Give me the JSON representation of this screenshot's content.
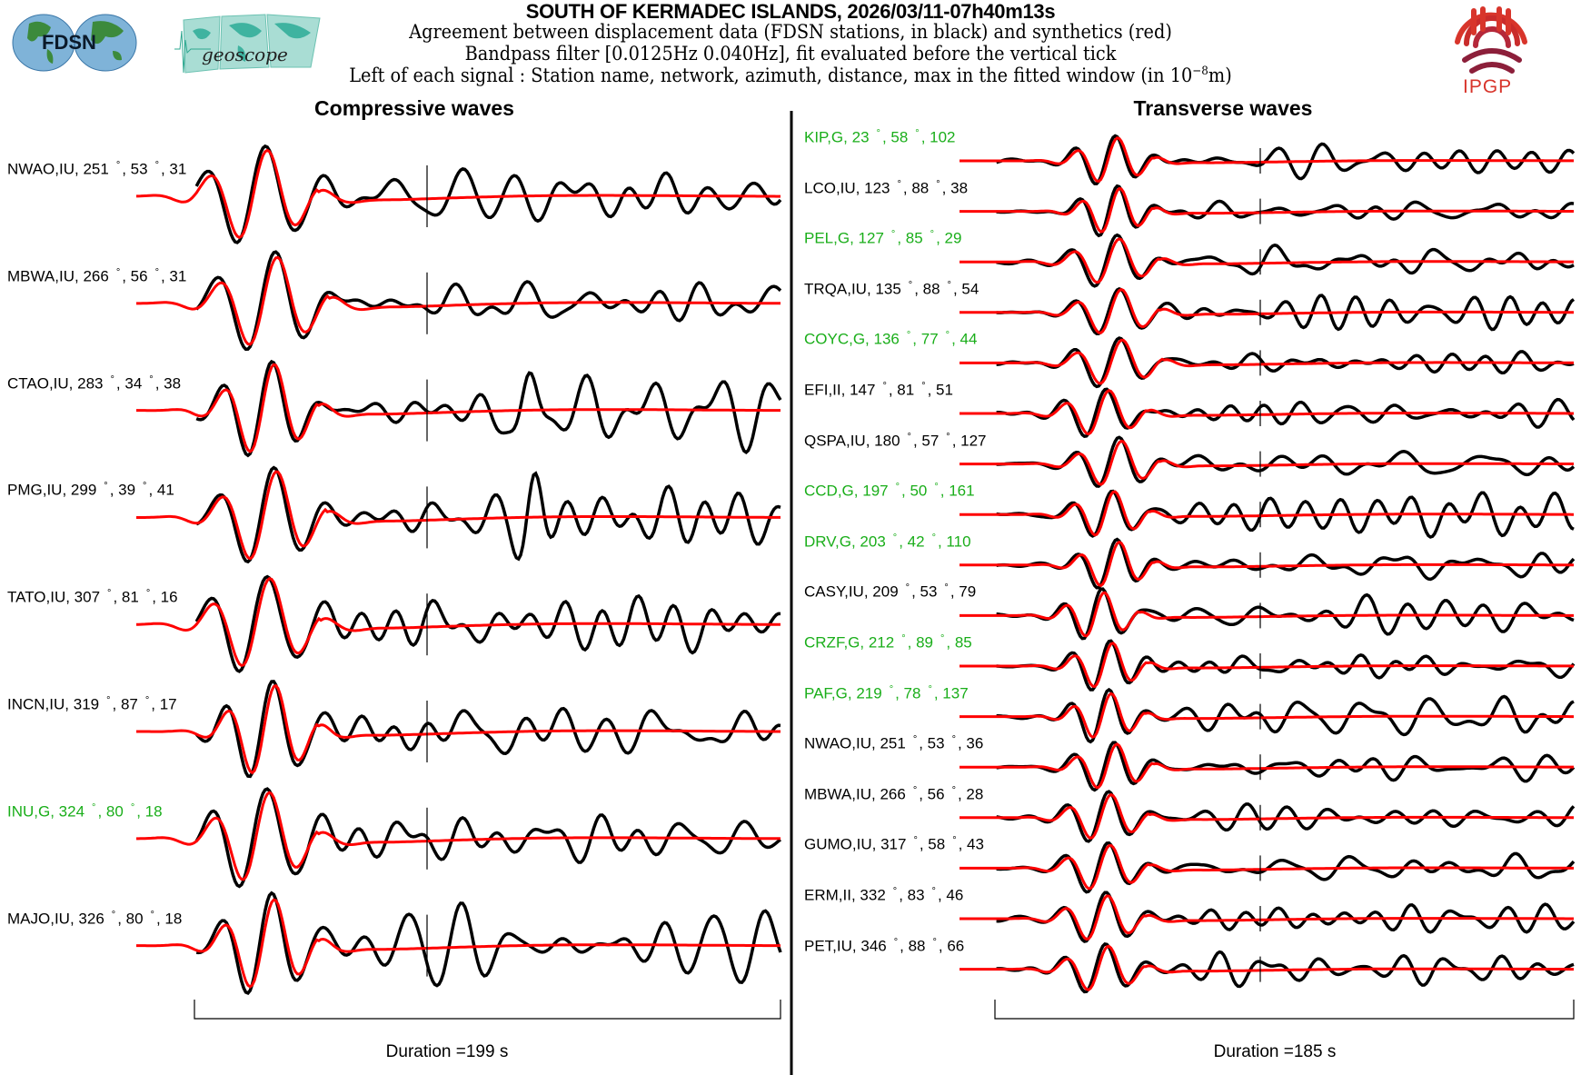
{
  "header": {
    "title": "SOUTH OF KERMADEC ISLANDS, 2026/03/11-07h40m13s",
    "line1": "Agreement between displacement data (FDSN stations, in black) and synthetics (red)",
    "line2": "Bandpass filter [0.0125Hz 0.040Hz], fit evaluated before the vertical tick",
    "line3_prefix": "Left of each signal : Station name, network, azimuth, distance, max in the fitted window (in 10",
    "line3_exp": "−8",
    "line3_suffix": "m)"
  },
  "logos": {
    "fdsn": "FDSN",
    "geoscope": "geoscope",
    "ipgp": "IPGP"
  },
  "colors": {
    "data": "#000000",
    "synthetic": "#ff0000",
    "geoscope_station": "#1aae1a",
    "other_station": "#000000"
  },
  "chart_data": {
    "type": "line",
    "title": "SOUTH OF KERMADEC ISLANDS, 2026/03/11-07h40m13s",
    "series_legend": [
      "data (black)",
      "synthetics (red)"
    ],
    "panels": [
      {
        "title": "Compressive waves",
        "duration_label": "Duration =199 s",
        "duration_s": 199,
        "stations": [
          {
            "name": "NWAO",
            "net": "IU",
            "az": "251",
            "dist": "53",
            "max": "31",
            "geoscope": false
          },
          {
            "name": "MBWA",
            "net": "IU",
            "az": "266",
            "dist": "56",
            "max": "31",
            "geoscope": false
          },
          {
            "name": "CTAO",
            "net": "IU",
            "az": "283",
            "dist": "34",
            "max": "38",
            "geoscope": false
          },
          {
            "name": "PMG",
            "net": "IU",
            "az": "299",
            "dist": "39",
            "max": "41",
            "geoscope": false
          },
          {
            "name": "TATO",
            "net": "IU",
            "az": "307",
            "dist": "81",
            "max": "16",
            "geoscope": false
          },
          {
            "name": "INCN",
            "net": "IU",
            "az": "319",
            "dist": "87",
            "max": "17",
            "geoscope": false
          },
          {
            "name": "INU",
            "net": "G",
            "az": "324",
            "dist": "80",
            "max": "18",
            "geoscope": true
          },
          {
            "name": "MAJO",
            "net": "IU",
            "az": "326",
            "dist": "80",
            "max": "18",
            "geoscope": false
          }
        ]
      },
      {
        "title": "Transverse waves",
        "duration_label": "Duration =185 s",
        "duration_s": 185,
        "stations": [
          {
            "name": "KIP",
            "net": "G",
            "az": "23",
            "dist": "58",
            "max": "102",
            "geoscope": true
          },
          {
            "name": "LCO",
            "net": "IU",
            "az": "123",
            "dist": "88",
            "max": "38",
            "geoscope": false
          },
          {
            "name": "PEL",
            "net": "G",
            "az": "127",
            "dist": "85",
            "max": "29",
            "geoscope": true
          },
          {
            "name": "TRQA",
            "net": "IU",
            "az": "135",
            "dist": "88",
            "max": "54",
            "geoscope": false
          },
          {
            "name": "COYC",
            "net": "G",
            "az": "136",
            "dist": "77",
            "max": "44",
            "geoscope": true
          },
          {
            "name": "EFI",
            "net": "II",
            "az": "147",
            "dist": "81",
            "max": "51",
            "geoscope": false
          },
          {
            "name": "QSPA",
            "net": "IU",
            "az": "180",
            "dist": "57",
            "max": "127",
            "geoscope": false
          },
          {
            "name": "CCD",
            "net": "G",
            "az": "197",
            "dist": "50",
            "max": "161",
            "geoscope": true
          },
          {
            "name": "DRV",
            "net": "G",
            "az": "203",
            "dist": "42",
            "max": "110",
            "geoscope": true
          },
          {
            "name": "CASY",
            "net": "IU",
            "az": "209",
            "dist": "53",
            "max": "79",
            "geoscope": false
          },
          {
            "name": "CRZF",
            "net": "G",
            "az": "212",
            "dist": "89",
            "max": "85",
            "geoscope": true
          },
          {
            "name": "PAF",
            "net": "G",
            "az": "219",
            "dist": "78",
            "max": "137",
            "geoscope": true
          },
          {
            "name": "NWAO",
            "net": "IU",
            "az": "251",
            "dist": "53",
            "max": "36",
            "geoscope": false
          },
          {
            "name": "MBWA",
            "net": "IU",
            "az": "266",
            "dist": "56",
            "max": "28",
            "geoscope": false
          },
          {
            "name": "GUMO",
            "net": "IU",
            "az": "317",
            "dist": "58",
            "max": "43",
            "geoscope": false
          },
          {
            "name": "ERM",
            "net": "II",
            "az": "332",
            "dist": "83",
            "max": "46",
            "geoscope": false
          },
          {
            "name": "PET",
            "net": "IU",
            "az": "346",
            "dist": "88",
            "max": "66",
            "geoscope": false
          }
        ]
      }
    ]
  }
}
